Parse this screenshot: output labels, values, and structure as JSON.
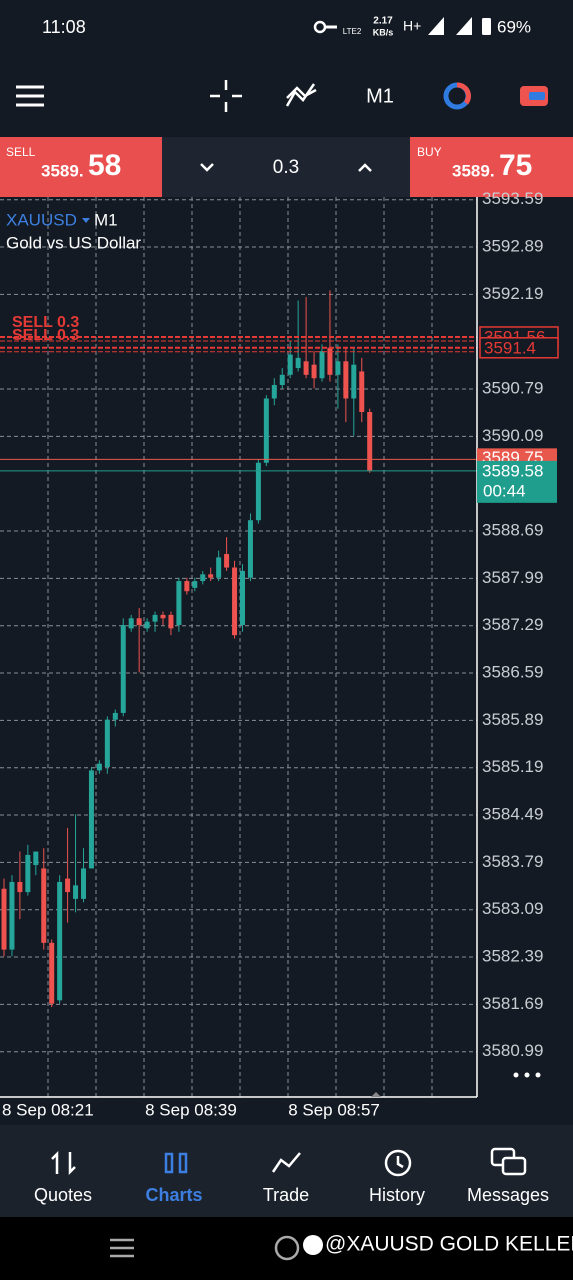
{
  "status_bar": {
    "time": "11:08",
    "network": "LTE2",
    "speed": "2.17",
    "speed_unit": "KB/s",
    "signal": "H+",
    "battery": "69%"
  },
  "toolbar": {
    "timeframe": "M1"
  },
  "trade_panel": {
    "sell_label": "SELL",
    "sell_price_head": "3589.",
    "sell_price_tail": "58",
    "volume": "0.3",
    "buy_label": "BUY",
    "buy_price_head": "3589.",
    "buy_price_tail": "75"
  },
  "chart_header": {
    "symbol": "XAUUSD",
    "timeframe": "M1",
    "description": "Gold vs US Dollar"
  },
  "chart_data": {
    "type": "candlestick",
    "categories": [
      "8 Sep 08:21",
      null,
      null,
      null,
      null,
      null,
      null,
      null,
      null,
      null,
      null,
      null,
      null,
      null,
      null,
      null,
      null,
      null,
      "8 Sep 08:39",
      null,
      null,
      null,
      null,
      null,
      null,
      null,
      null,
      null,
      null,
      null,
      null,
      null,
      null,
      null,
      null,
      null,
      "8 Sep 08:57",
      null,
      null,
      null,
      null,
      null,
      null,
      null,
      null,
      null,
      null
    ],
    "open": [
      3583.4,
      3582.5,
      3583.5,
      3583.35,
      3583.75,
      3583.7,
      3582.6,
      3581.75,
      3583.55,
      3583.25,
      3583.25,
      3583.7,
      3585.15,
      3585.2,
      3585.9,
      3586.0,
      3587.25,
      3587.4,
      3587.25,
      3587.35,
      3587.45,
      3587.45,
      3587.3,
      3587.95,
      3587.85,
      3587.95,
      3588.05,
      3588.0,
      3588.35,
      3588.15,
      3587.3,
      3588.0,
      3588.85,
      3589.7,
      3590.65,
      3590.85,
      3591.0,
      3591.1,
      3591.2,
      3591.15,
      3590.95,
      3591.4,
      3591.0,
      3591.2,
      3590.65,
      3591.05,
      3590.45
    ],
    "high": [
      3583.55,
      3583.6,
      3583.95,
      3584.05,
      3583.95,
      3584.0,
      3582.65,
      3583.6,
      3584.3,
      3584.5,
      3584.0,
      3585.2,
      3585.3,
      3585.95,
      3586.05,
      3587.4,
      3587.45,
      3587.55,
      3587.4,
      3587.5,
      3587.5,
      3587.5,
      3588.0,
      3588.0,
      3588.0,
      3588.1,
      3588.15,
      3588.4,
      3588.6,
      3588.25,
      3588.2,
      3588.95,
      3589.75,
      3590.7,
      3590.95,
      3591.1,
      3591.5,
      3592.1,
      3592.15,
      3591.35,
      3591.45,
      3592.25,
      3591.45,
      3591.4,
      3591.4,
      3591.25,
      3590.5
    ],
    "low": [
      3582.4,
      3582.4,
      3582.95,
      3583.3,
      3583.6,
      3582.5,
      3581.65,
      3581.7,
      3582.9,
      3583.05,
      3583.2,
      3583.7,
      3585.1,
      3585.1,
      3585.8,
      3585.95,
      3587.2,
      3586.6,
      3587.2,
      3587.2,
      3587.3,
      3587.15,
      3587.2,
      3587.75,
      3587.8,
      3587.9,
      3587.95,
      3587.95,
      3588.1,
      3587.1,
      3587.2,
      3587.95,
      3588.8,
      3589.65,
      3590.55,
      3590.8,
      3590.95,
      3591.05,
      3590.95,
      3590.8,
      3590.9,
      3590.9,
      3590.5,
      3590.3,
      3590.1,
      3590.3,
      3589.55
    ],
    "close": [
      3582.5,
      3583.5,
      3583.35,
      3583.9,
      3583.95,
      3582.6,
      3581.7,
      3583.5,
      3583.35,
      3583.45,
      3583.7,
      3585.15,
      3585.25,
      3585.9,
      3586.0,
      3587.3,
      3587.4,
      3587.3,
      3587.35,
      3587.45,
      3587.4,
      3587.25,
      3587.95,
      3587.8,
      3587.95,
      3588.05,
      3588.0,
      3588.3,
      3588.15,
      3587.15,
      3588.1,
      3588.85,
      3589.7,
      3590.65,
      3590.85,
      3591.0,
      3591.3,
      3591.25,
      3591.0,
      3590.95,
      3591.35,
      3591.0,
      3591.2,
      3590.65,
      3591.15,
      3590.45,
      3589.58
    ],
    "up_color": "#26a69a",
    "down_color": "#ef5350",
    "ylim": [
      3580.32,
      3593.63
    ],
    "yticks": [
      3593.59,
      3592.89,
      3592.19,
      3590.79,
      3590.09,
      3588.69,
      3587.99,
      3587.29,
      3586.59,
      3585.89,
      3585.19,
      3584.49,
      3583.79,
      3583.09,
      3582.39,
      3581.69,
      3580.99
    ],
    "grid": true,
    "order_lines": [
      {
        "label": "SELL 0.3",
        "price": 3591.56
      },
      {
        "label": "SELL 0.3",
        "price": 3591.4
      }
    ],
    "order_color": "#e53935",
    "ask": 3589.75,
    "ask_color": "#e8584c",
    "bid": 3589.58,
    "bid_color": "#1f9e8e",
    "countdown": "00:44"
  },
  "nav": {
    "items": [
      "Quotes",
      "Charts",
      "Trade",
      "History",
      "Messages"
    ],
    "active": 1
  },
  "watermark": "@XAUUSD GOLD KELLER"
}
